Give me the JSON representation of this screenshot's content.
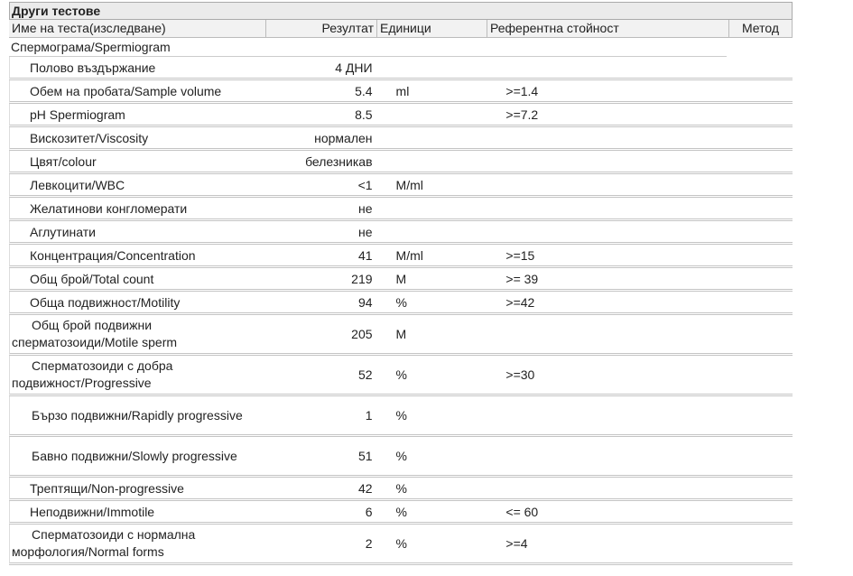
{
  "section_title": "Други тестове",
  "columns": [
    "Име на теста(изследване)",
    "Резултат",
    "Единици",
    "Референтна стойност",
    "Метод"
  ],
  "group": "Спермограма/Spermiogram",
  "rows": [
    {
      "name": "Полово въздържание",
      "result": "4 ДНИ",
      "unit": "",
      "ref": "",
      "lines": 1
    },
    {
      "name": "Обем на пробата/Sample volume",
      "result": "5.4",
      "unit": "ml",
      "ref": ">=1.4",
      "lines": 1
    },
    {
      "name": "pH Spermiogram",
      "result": "8.5",
      "unit": "",
      "ref": ">=7.2",
      "lines": 1
    },
    {
      "name": "Вискозитет/Viscosity",
      "result": "нормален",
      "unit": "",
      "ref": "",
      "lines": 1
    },
    {
      "name": "Цвят/colour",
      "result": "белезникав",
      "unit": "",
      "ref": "",
      "lines": 1
    },
    {
      "name": "Левкоцити/WBC",
      "result": "<1",
      "unit": "M/ml",
      "ref": "",
      "lines": 1
    },
    {
      "name": "Желатинови конгломерати",
      "result": "не",
      "unit": "",
      "ref": "",
      "lines": 1
    },
    {
      "name": "Аглутинати",
      "result": "не",
      "unit": "",
      "ref": "",
      "lines": 1
    },
    {
      "name": "Концентрация/Concentration",
      "result": "41",
      "unit": "M/ml",
      "ref": ">=15",
      "lines": 1
    },
    {
      "name": "Общ брой/Total count",
      "result": "219",
      "unit": "M",
      "ref": ">= 39",
      "lines": 1
    },
    {
      "name": "Обща подвижност/Motility",
      "result": "94",
      "unit": "%",
      "ref": ">=42",
      "lines": 1
    },
    {
      "name": "Общ брой подвижни сперматозоиди/Motile sperm",
      "result": "205",
      "unit": "M",
      "ref": "",
      "lines": 2
    },
    {
      "name": "Сперматозоиди с добра подвижност/Progressive",
      "result": "52",
      "unit": "%",
      "ref": ">=30",
      "lines": 2
    },
    {
      "name": "Бързо подвижни/Rapidly progressive",
      "result": "1",
      "unit": "%",
      "ref": "",
      "lines": 2
    },
    {
      "name": "Бавно подвижни/Slowly progressive",
      "result": "51",
      "unit": "%",
      "ref": "",
      "lines": 2
    },
    {
      "name": "Трептящи/Non-progressive",
      "result": "42",
      "unit": "%",
      "ref": "",
      "lines": 1
    },
    {
      "name": "Неподвижни/Immotile",
      "result": "6",
      "unit": "%",
      "ref": "<= 60",
      "lines": 1
    },
    {
      "name": "Сперматозоиди с нормална морфология/Normal forms",
      "result": "2",
      "unit": "%",
      "ref": ">=4",
      "lines": 2
    }
  ]
}
